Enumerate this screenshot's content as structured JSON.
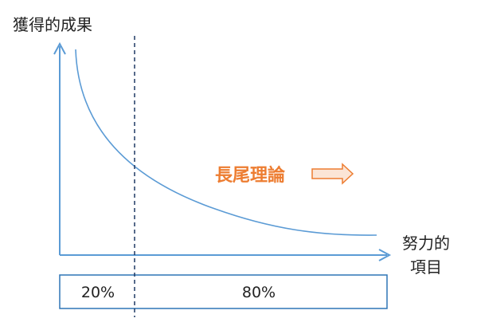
{
  "y_axis_label": "獲得的成果",
  "x_axis_label_line1": "努力的",
  "x_axis_label_line2": "項目",
  "annotation": "長尾理論",
  "split": {
    "left_label": "20%",
    "right_label": "80%"
  },
  "colors": {
    "axis": "#5b9bd5",
    "curve": "#5b9bd5",
    "box": "#2e75b6",
    "dashed_line": "#1f3864",
    "annotation": "#ed7d31",
    "arrow_fill": "#fbe5d6",
    "arrow_stroke": "#ed7d31"
  }
}
